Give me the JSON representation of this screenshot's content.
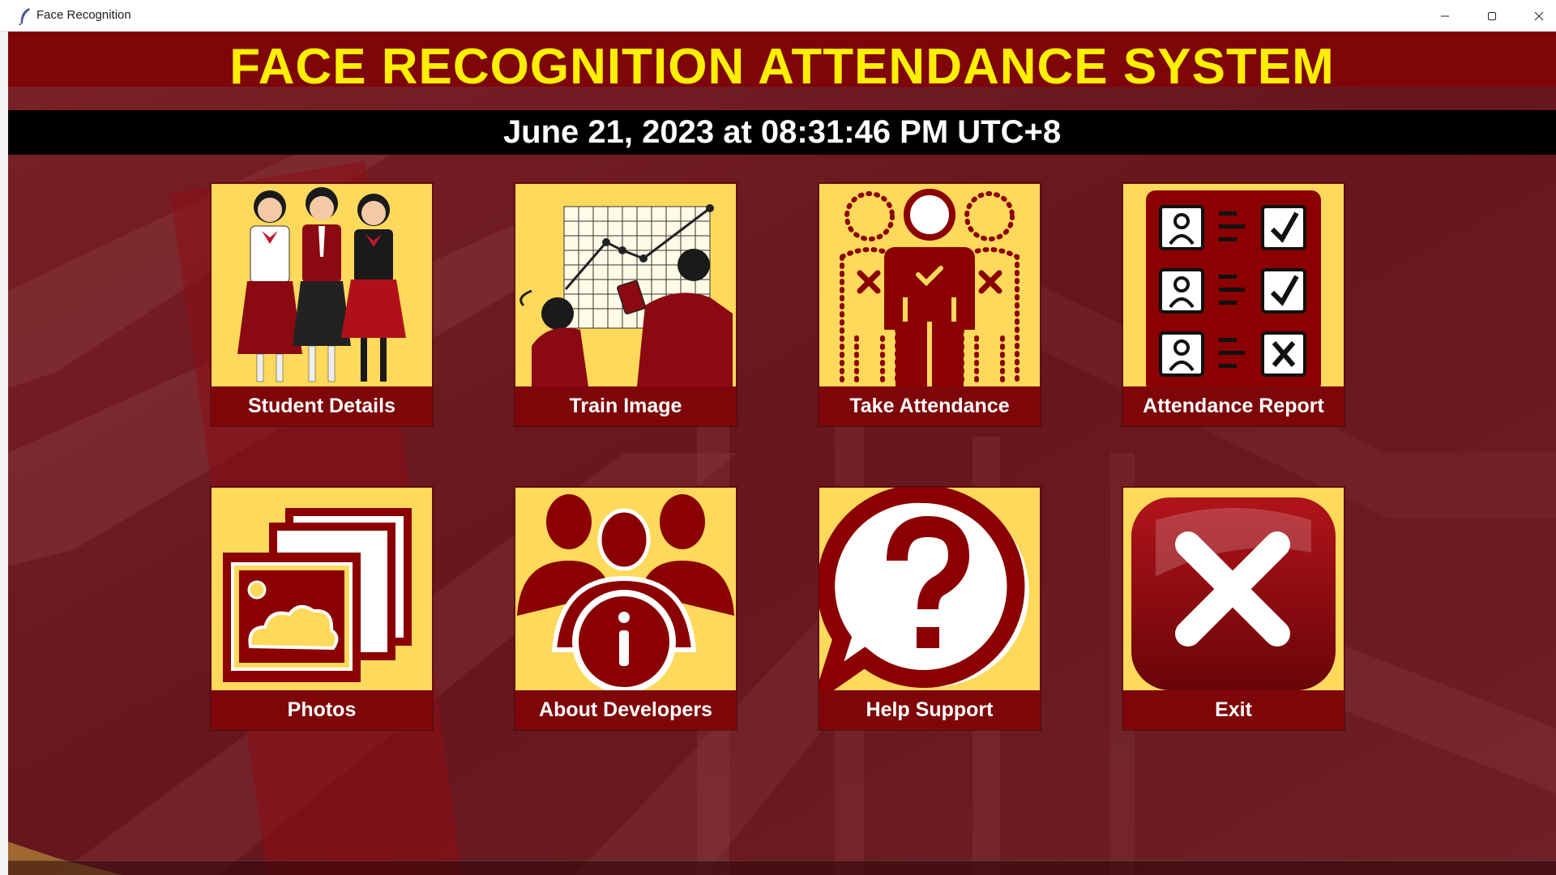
{
  "window": {
    "title": "Face Recognition",
    "controls": {
      "minimize": "minimize-icon",
      "maximize": "maximize-icon",
      "close": "close-icon"
    }
  },
  "header": {
    "title": "FACE RECOGNITION ATTENDANCE SYSTEM",
    "datetime": "June 21, 2023 at 08:31:46 PM UTC+8"
  },
  "tiles": [
    {
      "label": "Student Details",
      "icon": "students-icon"
    },
    {
      "label": "Train Image",
      "icon": "chart-presentation-icon"
    },
    {
      "label": "Take Attendance",
      "icon": "face-scan-person-icon"
    },
    {
      "label": "Attendance Report",
      "icon": "attendance-checklist-icon"
    },
    {
      "label": "Photos",
      "icon": "photos-stack-icon"
    },
    {
      "label": "About Developers",
      "icon": "team-info-icon"
    },
    {
      "label": "Help Support",
      "icon": "question-bubble-icon"
    },
    {
      "label": "Exit",
      "icon": "exit-x-icon"
    }
  ],
  "colors": {
    "banner": "#7e0508",
    "title_text": "#ffef00",
    "tile_bg": "#ffd95c",
    "accent": "#8b0000"
  }
}
